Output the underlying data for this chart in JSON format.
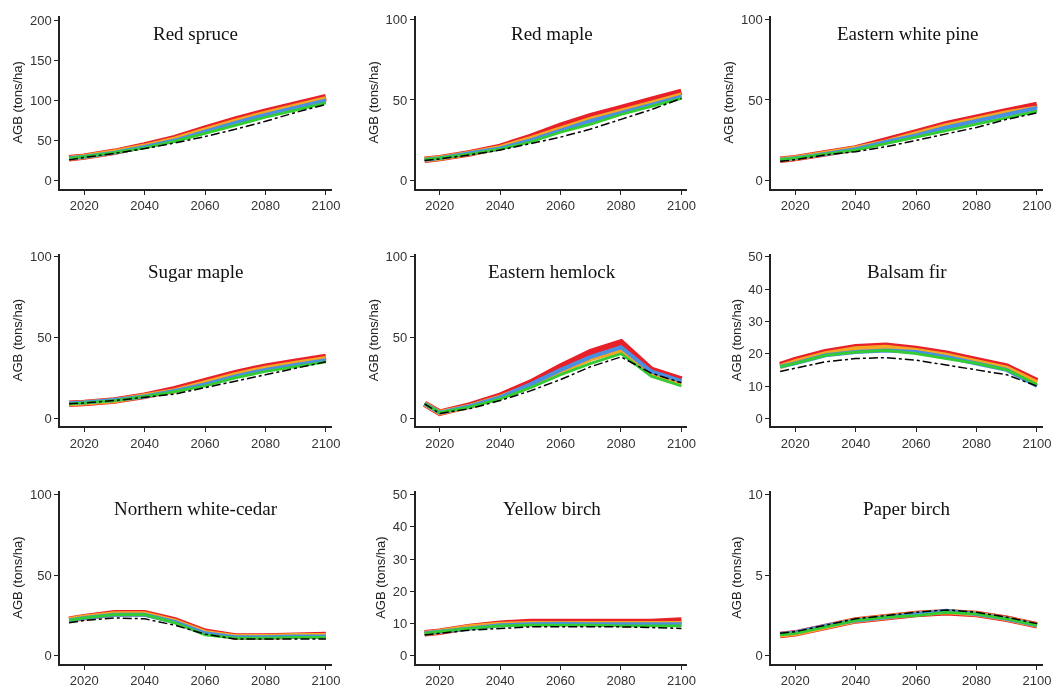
{
  "chart_data": [
    {
      "type": "line",
      "title": "Red spruce",
      "ylabel": "AGB (tons/ha)",
      "x": [
        2015,
        2020,
        2030,
        2040,
        2050,
        2060,
        2070,
        2080,
        2090,
        2100
      ],
      "xlim": [
        2012,
        2102
      ],
      "xticks": [
        2020,
        2040,
        2060,
        2080,
        2100
      ],
      "ylim": [
        -10,
        205
      ],
      "yticks": [
        0,
        50,
        100,
        150,
        200
      ],
      "series": [
        {
          "color": "#e8202a",
          "values": [
            28,
            30,
            36,
            44,
            53,
            65,
            76,
            86,
            95,
            104
          ]
        },
        {
          "color": "#f5a623",
          "values": [
            28,
            30,
            36,
            43,
            52,
            63,
            74,
            84,
            93,
            102
          ]
        },
        {
          "color": "#4a90e2",
          "values": [
            28,
            30,
            35,
            42,
            50,
            61,
            72,
            82,
            91,
            100
          ]
        },
        {
          "color": "#33cc33",
          "values": [
            28,
            30,
            35,
            41,
            49,
            59,
            69,
            79,
            88,
            97
          ]
        },
        {
          "color": "#000000",
          "line_style": "dashdot",
          "values": [
            26,
            29,
            34,
            40,
            47,
            55,
            64,
            74,
            85,
            95
          ]
        }
      ]
    },
    {
      "type": "line",
      "title": "Red maple",
      "ylabel": "AGB (tons/ha)",
      "x": [
        2015,
        2020,
        2030,
        2040,
        2050,
        2060,
        2070,
        2080,
        2090,
        2100
      ],
      "xlim": [
        2012,
        2102
      ],
      "xticks": [
        2020,
        2040,
        2060,
        2080,
        2100
      ],
      "ylim": [
        -5,
        102
      ],
      "yticks": [
        0,
        50,
        100
      ],
      "series": [
        {
          "color": "#e8202a",
          "values": [
            13,
            14,
            17,
            21,
            27,
            34,
            40,
            45,
            50,
            55
          ]
        },
        {
          "color": "#f5a623",
          "values": [
            13,
            14,
            17,
            20.5,
            26,
            32,
            38,
            43,
            48,
            53
          ]
        },
        {
          "color": "#4a90e2",
          "values": [
            13,
            14,
            17,
            20,
            25,
            31,
            37,
            42,
            47,
            52
          ]
        },
        {
          "color": "#33cc33",
          "values": [
            13,
            14,
            16.5,
            19.5,
            24,
            30,
            35,
            41,
            46,
            51
          ]
        },
        {
          "color": "#000000",
          "line_style": "dashdot",
          "values": [
            12.5,
            13.5,
            16,
            19,
            23,
            27,
            32,
            38,
            44,
            51
          ]
        }
      ]
    },
    {
      "type": "line",
      "title": "Eastern white pine",
      "ylabel": "AGB (tons/ha)",
      "x": [
        2015,
        2020,
        2030,
        2040,
        2050,
        2060,
        2070,
        2080,
        2090,
        2100
      ],
      "xlim": [
        2012,
        2102
      ],
      "xticks": [
        2020,
        2040,
        2060,
        2080,
        2100
      ],
      "ylim": [
        -5,
        102
      ],
      "yticks": [
        0,
        50,
        100
      ],
      "series": [
        {
          "color": "#e8202a",
          "values": [
            13,
            14,
            17,
            20,
            25,
            30,
            35,
            39,
            43,
            47
          ]
        },
        {
          "color": "#f5a623",
          "values": [
            13,
            14,
            17,
            20,
            24,
            29,
            34,
            38,
            42,
            45
          ]
        },
        {
          "color": "#4a90e2",
          "values": [
            13,
            14,
            16.5,
            19.5,
            24,
            28,
            33,
            37,
            41,
            45
          ]
        },
        {
          "color": "#33cc33",
          "values": [
            13,
            14,
            16.5,
            19,
            23,
            27,
            31,
            35,
            39,
            43
          ]
        },
        {
          "color": "#000000",
          "line_style": "dashdot",
          "values": [
            12,
            13,
            16,
            18,
            21,
            25,
            29,
            33,
            38,
            42
          ]
        }
      ]
    },
    {
      "type": "line",
      "title": "Sugar maple",
      "ylabel": "AGB (tons/ha)",
      "x": [
        2015,
        2020,
        2030,
        2040,
        2050,
        2060,
        2070,
        2080,
        2090,
        2100
      ],
      "xlim": [
        2012,
        2102
      ],
      "xticks": [
        2020,
        2040,
        2060,
        2080,
        2100
      ],
      "ylim": [
        -5,
        102
      ],
      "yticks": [
        0,
        50,
        100
      ],
      "series": [
        {
          "color": "#e8202a",
          "values": [
            9,
            9.5,
            11,
            14,
            18,
            23,
            28,
            32,
            35,
            38
          ]
        },
        {
          "color": "#f5a623",
          "values": [
            9,
            9.5,
            11,
            14,
            17,
            22,
            27,
            31,
            34,
            37
          ]
        },
        {
          "color": "#4a90e2",
          "values": [
            9.3,
            9.8,
            11.3,
            13.5,
            17,
            21,
            26,
            30,
            33,
            36
          ]
        },
        {
          "color": "#33cc33",
          "values": [
            9,
            9.5,
            11,
            13.5,
            16.5,
            20,
            25,
            29,
            32,
            35
          ]
        },
        {
          "color": "#000000",
          "line_style": "dashdot",
          "values": [
            9,
            9.5,
            11,
            13,
            15,
            19,
            23,
            27,
            31,
            35
          ]
        }
      ]
    },
    {
      "type": "line",
      "title": "Eastern hemlock",
      "ylabel": "AGB (tons/ha)",
      "x": [
        2015,
        2020,
        2030,
        2040,
        2050,
        2060,
        2070,
        2080,
        2090,
        2100
      ],
      "xlim": [
        2012,
        2102
      ],
      "xticks": [
        2020,
        2040,
        2060,
        2080,
        2100
      ],
      "ylim": [
        -5,
        102
      ],
      "yticks": [
        0,
        50,
        100
      ],
      "series": [
        {
          "color": "#e8202a",
          "values": [
            9,
            3.5,
            8,
            14,
            22,
            32,
            41,
            47,
            30,
            24
          ]
        },
        {
          "color": "#f5a623",
          "values": [
            9,
            3.5,
            7.5,
            13,
            20,
            29,
            37,
            42,
            28,
            22
          ]
        },
        {
          "color": "#4a90e2",
          "values": [
            9,
            3.5,
            7.5,
            13,
            21,
            30,
            38,
            44,
            29,
            23
          ]
        },
        {
          "color": "#33cc33",
          "values": [
            9,
            3.5,
            7,
            12,
            19,
            27,
            34,
            40,
            26,
            20
          ]
        },
        {
          "color": "#000000",
          "line_style": "dashdot",
          "values": [
            9,
            3,
            6,
            11,
            17,
            24,
            32,
            38,
            28,
            22
          ]
        }
      ]
    },
    {
      "type": "line",
      "title": "Balsam fir",
      "ylabel": "AGB (tons/ha)",
      "x": [
        2015,
        2020,
        2030,
        2040,
        2050,
        2060,
        2070,
        2080,
        2090,
        2100
      ],
      "xlim": [
        2012,
        2102
      ],
      "xticks": [
        2020,
        2040,
        2060,
        2080,
        2100
      ],
      "ylim": [
        -2.5,
        51
      ],
      "yticks": [
        0,
        10,
        20,
        30,
        40,
        50
      ],
      "series": [
        {
          "color": "#e8202a",
          "values": [
            16.5,
            18,
            20.5,
            22,
            22.5,
            21.5,
            20,
            18,
            16,
            11.5
          ]
        },
        {
          "color": "#f5a623",
          "values": [
            16,
            17.5,
            20,
            21.5,
            22,
            21,
            19.5,
            17.5,
            15.5,
            11
          ]
        },
        {
          "color": "#4a90e2",
          "values": [
            16,
            17,
            19.5,
            20.5,
            21,
            20.5,
            19,
            17,
            15,
            10
          ]
        },
        {
          "color": "#33cc33",
          "values": [
            16,
            17,
            19.5,
            20.5,
            21,
            20,
            18.5,
            17,
            15,
            10.5
          ]
        },
        {
          "color": "#000000",
          "line_style": "dashdot",
          "values": [
            14.5,
            15.5,
            17.5,
            18.5,
            18.8,
            18,
            16.5,
            15,
            13.5,
            10
          ]
        }
      ]
    },
    {
      "type": "line",
      "title": "Northern white-cedar",
      "ylabel": "AGB (tons/ha)",
      "x": [
        2015,
        2020,
        2030,
        2040,
        2050,
        2060,
        2070,
        2080,
        2090,
        2100
      ],
      "xlim": [
        2012,
        2102
      ],
      "xticks": [
        2020,
        2040,
        2060,
        2080,
        2100
      ],
      "ylim": [
        -5,
        102
      ],
      "yticks": [
        0,
        50,
        100
      ],
      "series": [
        {
          "color": "#e8202a",
          "values": [
            22.5,
            24,
            26.5,
            26.5,
            22,
            15,
            12,
            12,
            12.5,
            13
          ]
        },
        {
          "color": "#f5a623",
          "values": [
            22.5,
            24,
            26,
            26,
            21.5,
            14.5,
            12,
            12,
            12.5,
            12.5
          ]
        },
        {
          "color": "#4a90e2",
          "values": [
            22,
            23.5,
            25.5,
            25.5,
            21,
            14,
            11.5,
            11.5,
            12,
            12
          ]
        },
        {
          "color": "#33cc33",
          "values": [
            22,
            23.5,
            25.5,
            25.5,
            20.5,
            13,
            11,
            11,
            11.5,
            11.5
          ]
        },
        {
          "color": "#000000",
          "line_style": "dashdot",
          "values": [
            20.5,
            22,
            23.5,
            23,
            19,
            13.5,
            10.5,
            10.5,
            10.5,
            10.5
          ]
        }
      ]
    },
    {
      "type": "line",
      "title": "Yellow birch",
      "ylabel": "AGB (tons/ha)",
      "x": [
        2015,
        2020,
        2030,
        2040,
        2050,
        2060,
        2070,
        2080,
        2090,
        2100
      ],
      "xlim": [
        2012,
        2102
      ],
      "xticks": [
        2020,
        2040,
        2060,
        2080,
        2100
      ],
      "ylim": [
        -2.5,
        51
      ],
      "yticks": [
        0,
        10,
        20,
        30,
        40,
        50
      ],
      "series": [
        {
          "color": "#e8202a",
          "values": [
            7,
            7.5,
            9,
            10,
            10.5,
            10.5,
            10.5,
            10.5,
            10.5,
            11
          ]
        },
        {
          "color": "#f5a623",
          "values": [
            7,
            7.5,
            9,
            9.8,
            10,
            10,
            10,
            10,
            10,
            10
          ]
        },
        {
          "color": "#4a90e2",
          "values": [
            7,
            7.5,
            8.5,
            9.5,
            9.8,
            10,
            9.8,
            9.8,
            9.8,
            9.8
          ]
        },
        {
          "color": "#33cc33",
          "values": [
            7,
            7.5,
            8.5,
            9.3,
            9.5,
            9.5,
            9.5,
            9.3,
            9.3,
            9.3
          ]
        },
        {
          "color": "#000000",
          "line_style": "dashdot",
          "values": [
            6.5,
            7,
            8,
            8.5,
            9,
            9,
            9,
            9,
            8.8,
            8.5
          ]
        }
      ]
    },
    {
      "type": "line",
      "title": "Paper birch",
      "ylabel": "AGB (tons/ha)",
      "x": [
        2015,
        2020,
        2030,
        2040,
        2050,
        2060,
        2070,
        2080,
        2090,
        2100
      ],
      "xlim": [
        2012,
        2102
      ],
      "xticks": [
        2020,
        2040,
        2060,
        2080,
        2100
      ],
      "ylim": [
        -0.5,
        10.2
      ],
      "yticks": [
        0,
        5,
        10
      ],
      "series": [
        {
          "color": "#e8202a",
          "values": [
            1.3,
            1.4,
            1.8,
            2.2,
            2.4,
            2.6,
            2.7,
            2.6,
            2.3,
            1.9
          ]
        },
        {
          "color": "#f5a623",
          "values": [
            1.3,
            1.4,
            1.8,
            2.2,
            2.4,
            2.6,
            2.75,
            2.6,
            2.3,
            1.9
          ]
        },
        {
          "color": "#4a90e2",
          "values": [
            1.35,
            1.45,
            1.85,
            2.2,
            2.4,
            2.6,
            2.8,
            2.6,
            2.3,
            1.9
          ]
        },
        {
          "color": "#33cc33",
          "values": [
            1.3,
            1.4,
            1.8,
            2.2,
            2.4,
            2.5,
            2.7,
            2.6,
            2.3,
            1.9
          ]
        },
        {
          "color": "#000000",
          "line_style": "dashdot",
          "values": [
            1.4,
            1.5,
            1.9,
            2.3,
            2.5,
            2.7,
            2.85,
            2.7,
            2.4,
            2.0
          ]
        }
      ]
    }
  ]
}
